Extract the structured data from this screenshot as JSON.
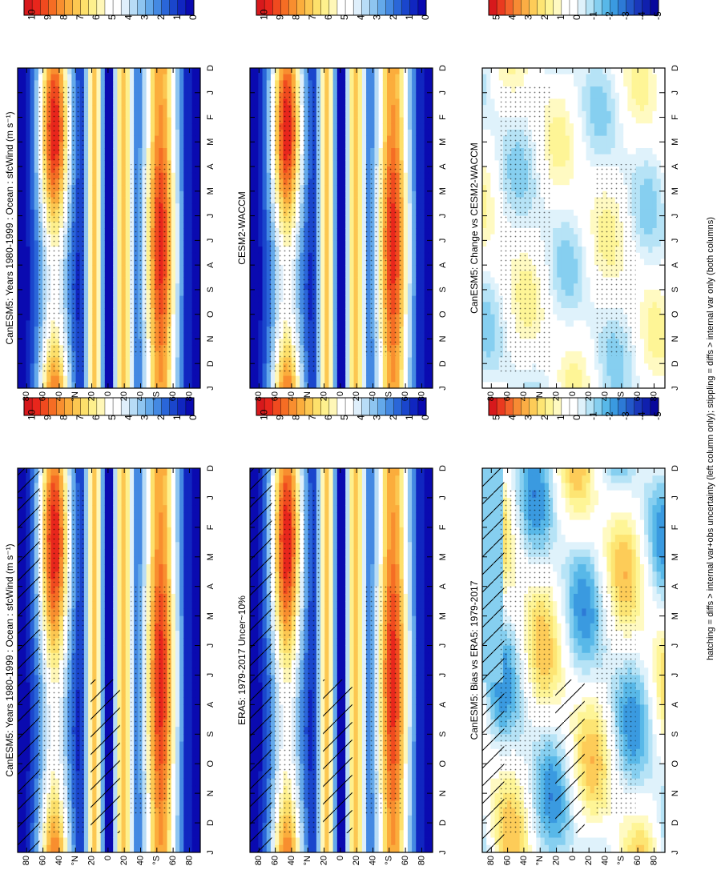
{
  "figure": {
    "footnote": "hatching = diffs > internal var+obs uncertainty (left column only); stippling = diffs > internal var only (both columns)"
  },
  "chart_data": [
    {
      "type": "heatmap",
      "title": "CanESM5: Years 1980-1999 : Ocean : sfcWind (m s⁻¹)",
      "x": [
        "D",
        "J",
        "F",
        "M",
        "A",
        "M",
        "J",
        "J",
        "A",
        "S",
        "O",
        "N",
        "D",
        "J"
      ],
      "ylabel": "",
      "y_ticks": [
        "80",
        "60",
        "40",
        "°N",
        "20",
        "0",
        "20",
        "40",
        "°S",
        "60",
        "80"
      ],
      "colorbar": {
        "labels": [
          "10",
          "9",
          "8",
          "7",
          "6",
          "5",
          "4",
          "3",
          "2",
          "1",
          "0"
        ],
        "range": [
          0,
          10
        ]
      },
      "palette": "warm"
    },
    {
      "type": "heatmap",
      "title": "ERA5: 1979-2017 Uncer~10%",
      "x": [
        "D",
        "J",
        "F",
        "M",
        "A",
        "M",
        "J",
        "J",
        "A",
        "S",
        "O",
        "N",
        "D",
        "J"
      ],
      "y_ticks": [
        "80",
        "60",
        "40",
        "°N",
        "20",
        "0",
        "20",
        "40",
        "°S",
        "60",
        "80"
      ],
      "colorbar": {
        "labels": [
          "10",
          "9",
          "8",
          "7",
          "6",
          "5",
          "4",
          "3",
          "2",
          "1",
          "0"
        ],
        "range": [
          0,
          10
        ]
      },
      "palette": "warm"
    },
    {
      "type": "heatmap",
      "title": "CanESM5: Bias vs ERA5: 1979-2017",
      "x": [
        "D",
        "J",
        "F",
        "M",
        "A",
        "M",
        "J",
        "J",
        "A",
        "S",
        "O",
        "N",
        "D",
        "J"
      ],
      "y_ticks": [
        "80",
        "60",
        "40",
        "°N",
        "20",
        "0",
        "20",
        "40",
        "°S",
        "60",
        "80"
      ],
      "colorbar": {
        "labels": [
          "5",
          "4",
          "3",
          "2",
          "1",
          "0",
          "-1",
          "-2",
          "-3",
          "-4",
          "-5"
        ],
        "range": [
          -5,
          5
        ]
      },
      "palette": "diverging"
    },
    {
      "type": "heatmap",
      "title": "CanESM5: Years 1980-1999 : Ocean : sfcWind (m s⁻¹)",
      "x": [
        "D",
        "J",
        "F",
        "M",
        "A",
        "M",
        "J",
        "J",
        "A",
        "S",
        "O",
        "N",
        "D",
        "J"
      ],
      "y_ticks": [
        "80",
        "60",
        "40",
        "°N",
        "20",
        "0",
        "20",
        "40",
        "°S",
        "60",
        "80"
      ],
      "colorbar": {
        "labels": [
          "10",
          "9",
          "8",
          "7",
          "6",
          "5",
          "4",
          "3",
          "2",
          "1",
          "0"
        ],
        "range": [
          0,
          10
        ]
      },
      "palette": "warm"
    },
    {
      "type": "heatmap",
      "title": "CESM2-WACCM",
      "x": [
        "D",
        "J",
        "F",
        "M",
        "A",
        "M",
        "J",
        "J",
        "A",
        "S",
        "O",
        "N",
        "D",
        "J"
      ],
      "y_ticks": [
        "80",
        "60",
        "40",
        "°N",
        "20",
        "0",
        "20",
        "40",
        "°S",
        "60",
        "80"
      ],
      "colorbar": {
        "labels": [
          "10",
          "9",
          "8",
          "7",
          "6",
          "5",
          "4",
          "3",
          "2",
          "1",
          "0"
        ],
        "range": [
          0,
          10
        ]
      },
      "palette": "warm"
    },
    {
      "type": "heatmap",
      "title": "CanESM5: Change vs CESM2-WACCM",
      "x": [
        "D",
        "J",
        "F",
        "M",
        "A",
        "M",
        "J",
        "J",
        "A",
        "S",
        "O",
        "N",
        "D",
        "J"
      ],
      "y_ticks": [
        "80",
        "60",
        "40",
        "°N",
        "20",
        "0",
        "20",
        "40",
        "°S",
        "60",
        "80"
      ],
      "colorbar": {
        "labels": [
          "5",
          "4",
          "3",
          "2",
          "1",
          "0",
          "-1",
          "-2",
          "-3",
          "-4",
          "-5"
        ],
        "range": [
          -5,
          5
        ]
      },
      "palette": "diverging"
    }
  ]
}
